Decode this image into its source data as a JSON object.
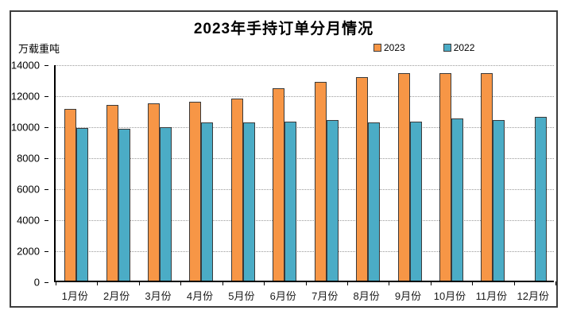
{
  "title": "2023年手持订单分月情况",
  "y_axis_unit": "万载重吨",
  "legend": {
    "items": [
      {
        "label": "2023",
        "color": "#F79646"
      },
      {
        "label": "2022",
        "color": "#4BACC6"
      }
    ]
  },
  "colors": {
    "bar_2023": "#F79646",
    "bar_2022": "#4BACC6",
    "bar_border": "#3A3A3A",
    "gridline": "#9A9A9A",
    "axis": "#000000",
    "frame_border": "#3D3D3D"
  },
  "chart_data": {
    "type": "bar",
    "title": "2023年手持订单分月情况",
    "xlabel": "",
    "ylabel": "万载重吨",
    "categories": [
      "1月份",
      "2月份",
      "3月份",
      "4月份",
      "5月份",
      "6月份",
      "7月份",
      "8月份",
      "9月份",
      "10月份",
      "11月份",
      "12月份"
    ],
    "series": [
      {
        "name": "2023",
        "color": "#F79646",
        "values": [
          11100,
          11320,
          11420,
          11520,
          11750,
          12400,
          12800,
          13150,
          13400,
          13400,
          13400,
          null
        ]
      },
      {
        "name": "2022",
        "color": "#4BACC6",
        "values": [
          9850,
          9800,
          9900,
          10200,
          10200,
          10250,
          10350,
          10200,
          10250,
          10450,
          10350,
          10550
        ]
      }
    ],
    "ylim": [
      0,
      14000
    ],
    "ytick_step": 2000,
    "yticks": [
      0,
      2000,
      4000,
      6000,
      8000,
      10000,
      12000,
      14000
    ],
    "grid": true,
    "gridline_style": "dotted",
    "legend_position": "top-right"
  }
}
